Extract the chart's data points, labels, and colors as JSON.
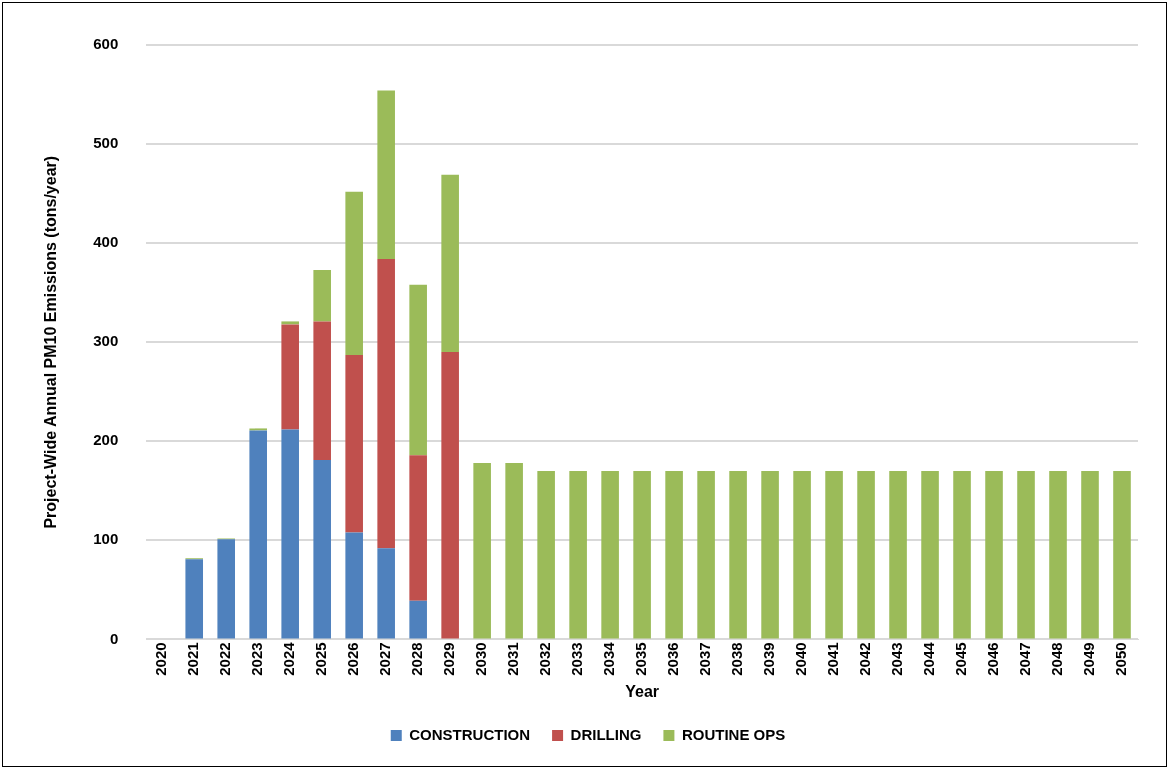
{
  "chart_data": {
    "type": "bar",
    "stacked": true,
    "xlabel": "Year",
    "ylabel": "Project-Wide Annual PM10 Emissions (tons/year)",
    "categories": [
      "2020",
      "2021",
      "2022",
      "2023",
      "2024",
      "2025",
      "2026",
      "2027",
      "2028",
      "2029",
      "2030",
      "2031",
      "2032",
      "2033",
      "2034",
      "2035",
      "2036",
      "2037",
      "2038",
      "2039",
      "2040",
      "2041",
      "2042",
      "2043",
      "2044",
      "2045",
      "2046",
      "2047",
      "2048",
      "2049",
      "2050"
    ],
    "series": [
      {
        "name": "CONSTRUCTION",
        "color": "#4f81bd",
        "values": [
          null,
          81,
          101,
          211,
          212,
          181,
          108,
          92,
          39,
          null,
          null,
          null,
          null,
          null,
          null,
          null,
          null,
          null,
          null,
          null,
          null,
          null,
          null,
          null,
          null,
          null,
          null,
          null,
          null,
          null,
          null
        ]
      },
      {
        "name": "DRILLING",
        "color": "#c0504d",
        "values": [
          null,
          null,
          null,
          null,
          106,
          140,
          179,
          292,
          147,
          290,
          null,
          null,
          null,
          null,
          null,
          null,
          null,
          null,
          null,
          null,
          null,
          null,
          null,
          null,
          null,
          null,
          null,
          null,
          null,
          null,
          null
        ]
      },
      {
        "name": "ROUTINE OPS",
        "color": "#9bbb59",
        "values": [
          null,
          1,
          1,
          2,
          3,
          52,
          165,
          170,
          172,
          179,
          178,
          178,
          170,
          170,
          170,
          170,
          170,
          170,
          170,
          170,
          170,
          170,
          170,
          170,
          170,
          170,
          170,
          170,
          170,
          170,
          170
        ]
      }
    ],
    "ylim": [
      0,
      600
    ],
    "yticks": [
      0,
      100,
      200,
      300,
      400,
      500,
      600
    ],
    "grid": "y",
    "legend": "bottom"
  }
}
